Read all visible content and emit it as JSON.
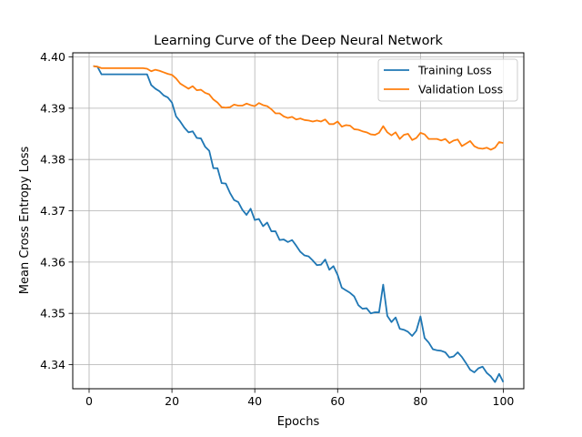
{
  "chart_data": {
    "type": "line",
    "title": "Learning Curve of the Deep Neural Network",
    "xlabel": "Epochs",
    "ylabel": "Mean Cross Entropy Loss",
    "xlim": [
      -3.95,
      104.95
    ],
    "ylim": [
      4.3353,
      4.4008
    ],
    "xticks": [
      0,
      20,
      40,
      60,
      80,
      100
    ],
    "yticks": [
      4.34,
      4.35,
      4.36,
      4.37,
      4.38,
      4.39,
      4.4
    ],
    "ytick_labels": [
      "4.34",
      "4.35",
      "4.36",
      "4.37",
      "4.38",
      "4.39",
      "4.40"
    ],
    "grid": true,
    "legend_position": "top-right",
    "series": [
      {
        "name": "Training Loss",
        "color": "#1f77b4",
        "x": [
          1,
          2,
          3,
          4,
          5,
          6,
          7,
          8,
          9,
          10,
          11,
          12,
          13,
          14,
          15,
          16,
          17,
          18,
          19,
          20,
          21,
          22,
          23,
          24,
          25,
          26,
          27,
          28,
          29,
          30,
          31,
          32,
          33,
          34,
          35,
          36,
          37,
          38,
          39,
          40,
          41,
          42,
          43,
          44,
          45,
          46,
          47,
          48,
          49,
          50,
          51,
          52,
          53,
          54,
          55,
          56,
          57,
          58,
          59,
          60,
          61,
          62,
          63,
          64,
          65,
          66,
          67,
          68,
          69,
          70,
          71,
          72,
          73,
          74,
          75,
          76,
          77,
          78,
          79,
          80,
          81,
          82,
          83,
          84,
          85,
          86,
          87,
          88,
          89,
          90,
          91,
          92,
          93,
          94,
          95,
          96,
          97,
          98,
          99,
          100
        ],
        "values": [
          4.3982,
          4.3981,
          4.3966,
          4.3966,
          4.3966,
          4.3966,
          4.3966,
          4.3966,
          4.3966,
          4.3966,
          4.3966,
          4.3966,
          4.3966,
          4.3966,
          4.3945,
          4.3938,
          4.3933,
          4.3925,
          4.3921,
          4.3911,
          4.3884,
          4.3874,
          4.3862,
          4.3853,
          4.3855,
          4.3842,
          4.3841,
          4.3825,
          4.3817,
          4.3783,
          4.3783,
          4.3754,
          4.3753,
          4.3735,
          4.3721,
          4.3717,
          4.3702,
          4.3692,
          4.3704,
          4.3682,
          4.3684,
          4.367,
          4.3677,
          4.366,
          4.366,
          4.3643,
          4.3644,
          4.3639,
          4.3643,
          4.3632,
          4.362,
          4.3613,
          4.3611,
          4.3603,
          4.3594,
          4.3595,
          4.3605,
          4.3585,
          4.3592,
          4.3575,
          4.355,
          4.3545,
          4.354,
          4.3533,
          4.3516,
          4.3509,
          4.351,
          4.35,
          4.3502,
          4.3502,
          4.3556,
          4.3495,
          4.3483,
          4.3492,
          4.347,
          4.3468,
          4.3464,
          4.3456,
          4.3466,
          4.3494,
          4.3452,
          4.3443,
          4.343,
          4.3428,
          4.3427,
          4.3424,
          4.3414,
          4.3416,
          4.3424,
          4.3415,
          4.3403,
          4.339,
          4.3385,
          4.3393,
          4.3396,
          4.3384,
          4.3377,
          4.3366,
          4.3382,
          4.3366
        ]
      },
      {
        "name": "Validation Loss",
        "color": "#ff7f0e",
        "x": [
          1,
          2,
          3,
          4,
          5,
          6,
          7,
          8,
          9,
          10,
          11,
          12,
          13,
          14,
          15,
          16,
          17,
          18,
          19,
          20,
          21,
          22,
          23,
          24,
          25,
          26,
          27,
          28,
          29,
          30,
          31,
          32,
          33,
          34,
          35,
          36,
          37,
          38,
          39,
          40,
          41,
          42,
          43,
          44,
          45,
          46,
          47,
          48,
          49,
          50,
          51,
          52,
          53,
          54,
          55,
          56,
          57,
          58,
          59,
          60,
          61,
          62,
          63,
          64,
          65,
          66,
          67,
          68,
          69,
          70,
          71,
          72,
          73,
          74,
          75,
          76,
          77,
          78,
          79,
          80,
          81,
          82,
          83,
          84,
          85,
          86,
          87,
          88,
          89,
          90,
          91,
          92,
          93,
          94,
          95,
          96,
          97,
          98,
          99,
          100
        ],
        "values": [
          4.3982,
          4.3981,
          4.3978,
          4.3978,
          4.3978,
          4.3978,
          4.3978,
          4.3978,
          4.3978,
          4.3978,
          4.3978,
          4.3978,
          4.3978,
          4.3977,
          4.3972,
          4.3975,
          4.3973,
          4.397,
          4.3967,
          4.3965,
          4.3958,
          4.3948,
          4.3943,
          4.3938,
          4.3943,
          4.3935,
          4.3936,
          4.393,
          4.3927,
          4.3917,
          4.3911,
          4.3902,
          4.3901,
          4.3902,
          4.3907,
          4.3905,
          4.3905,
          4.3909,
          4.3906,
          4.3904,
          4.391,
          4.3906,
          4.3904,
          4.3898,
          4.389,
          4.389,
          4.3884,
          4.3881,
          4.3883,
          4.3878,
          4.388,
          4.3877,
          4.3876,
          4.3874,
          4.3876,
          4.3874,
          4.3878,
          4.3869,
          4.3869,
          4.3874,
          4.3864,
          4.3867,
          4.3866,
          4.3859,
          4.3858,
          4.3855,
          4.3853,
          4.3849,
          4.3848,
          4.3852,
          4.3865,
          4.3853,
          4.3847,
          4.3853,
          4.384,
          4.3848,
          4.385,
          4.3838,
          4.3842,
          4.3852,
          4.3849,
          4.384,
          4.384,
          4.384,
          4.3837,
          4.384,
          4.3832,
          4.3837,
          4.3839,
          4.3826,
          4.3831,
          4.3836,
          4.3826,
          4.3822,
          4.3821,
          4.3823,
          4.3819,
          4.3823,
          4.3834,
          4.3832
        ]
      }
    ]
  }
}
